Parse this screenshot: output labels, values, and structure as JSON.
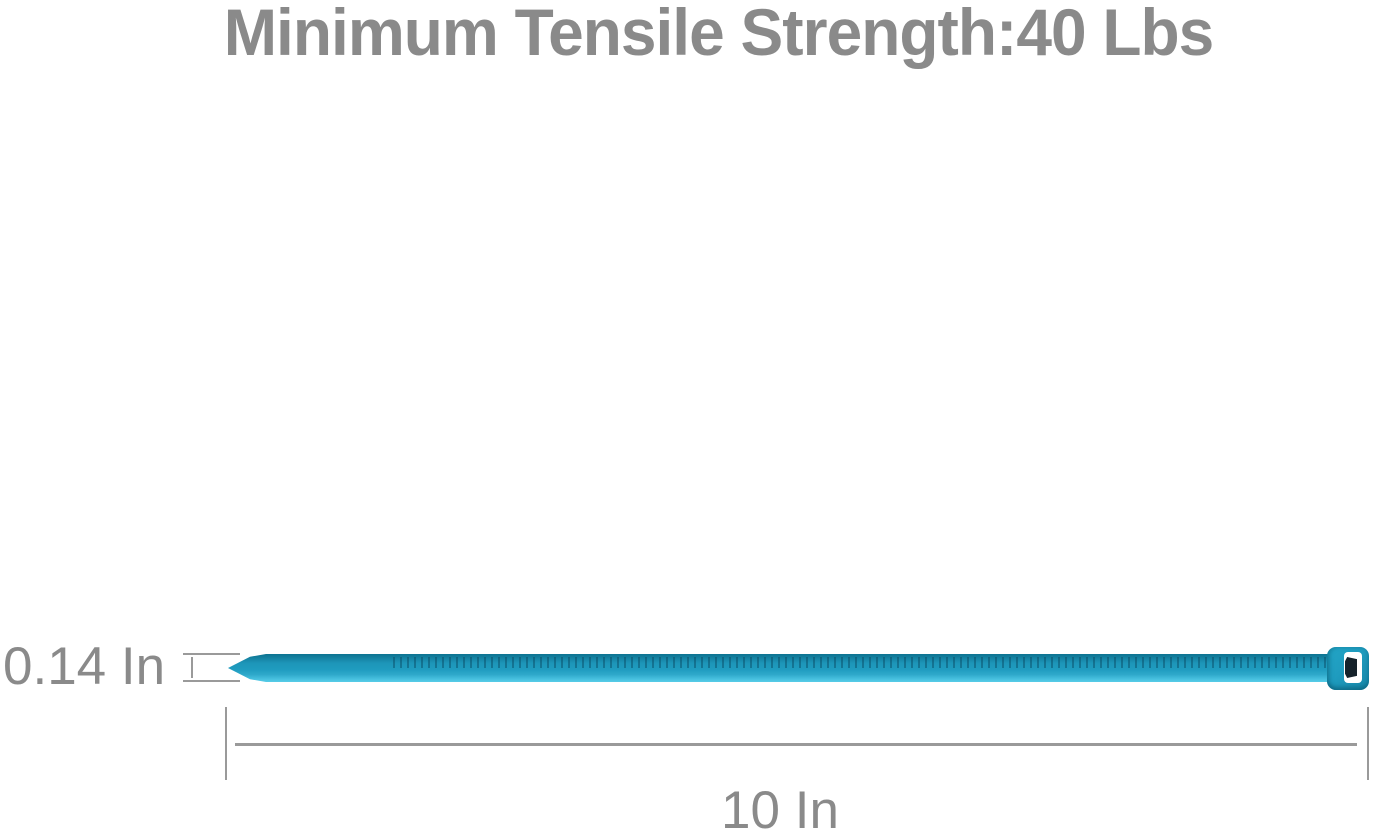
{
  "title": "Minimum Tensile Strength:40 Lbs",
  "product": {
    "name": "cable-tie",
    "tie_color_name": "teal"
  },
  "dimensions": {
    "width_label": "0.14 In",
    "length_label": "10 In"
  },
  "colors": {
    "title_gray": "#8a8a8a",
    "dim_gray": "#8a8a8a",
    "line_gray": "#9a9a9a",
    "tie_main": "#1f9cbf",
    "tie_dark_edge": "#0d7391",
    "tie_light_edge": "#56cce8",
    "slot_white": "#ffffff",
    "pawl_dark": "#15222b"
  }
}
